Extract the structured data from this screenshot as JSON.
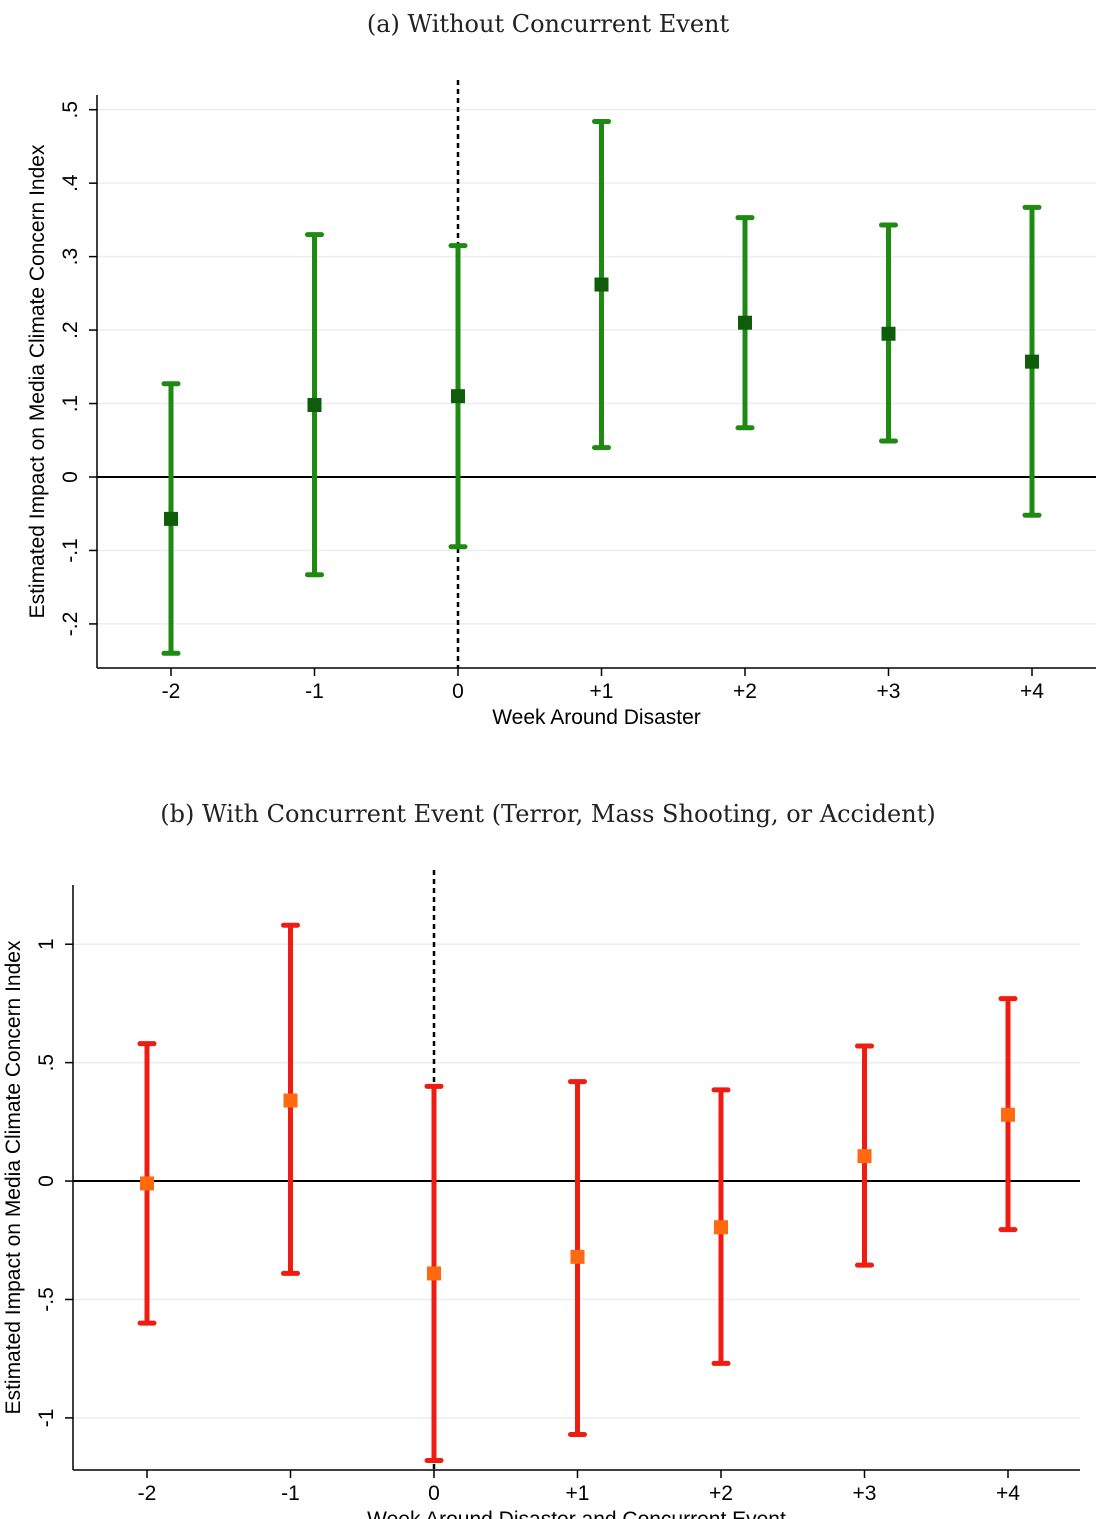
{
  "chart_data": [
    {
      "type": "scatter",
      "title": "(a) Without Concurrent Event",
      "xlabel": "Week Around Disaster",
      "ylabel": "Estimated Impact on Media Climate Concern Index",
      "categories": [
        "-2",
        "-1",
        "0",
        "+1",
        "+2",
        "+3",
        "+4"
      ],
      "estimates": [
        -0.057,
        0.098,
        0.11,
        0.262,
        0.21,
        0.195,
        0.157
      ],
      "ci_lower": [
        -0.24,
        -0.133,
        -0.095,
        0.04,
        0.067,
        0.049,
        -0.052
      ],
      "ci_upper": [
        0.127,
        0.33,
        0.315,
        0.484,
        0.353,
        0.343,
        0.367
      ],
      "yticks": [
        -0.2,
        -0.1,
        0,
        0.1,
        0.2,
        0.3,
        0.4,
        0.5
      ],
      "ytick_labels": [
        "-.2",
        "-.1",
        "0",
        ".1",
        ".2",
        ".3",
        ".4",
        ".5"
      ],
      "ylim": [
        -0.26,
        0.52
      ],
      "vline_at": "0",
      "colors": {
        "bar": "#1e8a12",
        "marker": "#0f5c0a",
        "grid": "#e8eef2"
      }
    },
    {
      "type": "scatter",
      "title": "(b) With Concurrent Event (Terror, Mass Shooting, or Accident)",
      "xlabel": "Week Around Disaster and Concurrent Event",
      "ylabel": "Estimated Impact on Media Climate Concern Index",
      "categories": [
        "-2",
        "-1",
        "0",
        "+1",
        "+2",
        "+3",
        "+4"
      ],
      "estimates": [
        -0.01,
        0.34,
        -0.39,
        -0.32,
        -0.195,
        0.105,
        0.28
      ],
      "ci_lower": [
        -0.6,
        -0.39,
        -1.18,
        -1.07,
        -0.77,
        -0.355,
        -0.205
      ],
      "ci_upper": [
        0.58,
        1.08,
        0.4,
        0.42,
        0.385,
        0.57,
        0.77
      ],
      "yticks": [
        -1,
        -0.5,
        0,
        0.5,
        1
      ],
      "ytick_labels": [
        "-1",
        "-.5",
        "0",
        ".5",
        "1"
      ],
      "ylim": [
        -1.22,
        1.25
      ],
      "vline_at": "0",
      "colors": {
        "bar": "#ef1c12",
        "marker": "#ff6a10",
        "grid": "#e8eef2"
      }
    }
  ]
}
